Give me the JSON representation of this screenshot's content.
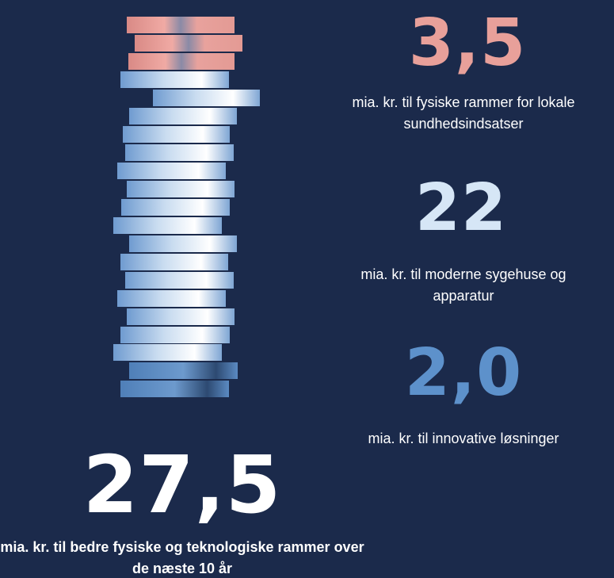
{
  "items": [
    {
      "amount": "3,5",
      "text": "mia. kr. til fysiske rammer for lokale sundhedsindsatser"
    },
    {
      "amount": "22",
      "text": "mia. kr. til moderne sygehuse og apparatur"
    },
    {
      "amount": "2,0",
      "text": "mia. kr. til innovative løsninger"
    }
  ],
  "total": {
    "amount": "27,5",
    "text": "mia. kr. til bedre fysiske og teknologiske rammer over de næste 10 år"
  }
}
